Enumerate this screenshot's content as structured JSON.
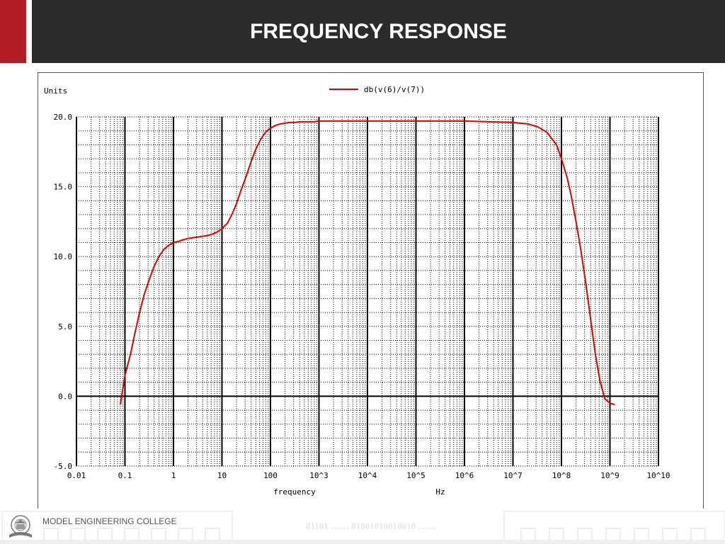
{
  "header": {
    "title": "FREQUENCY RESPONSE"
  },
  "footer": {
    "college": "MODEL ENGINEERING COLLEGE",
    "binary": "01101 …… 01001010010010 ……"
  },
  "colors": {
    "header_bg": "#2b2b2b",
    "accent": "#b21d24",
    "trace": "#e00000"
  },
  "chart_data": {
    "type": "line",
    "ylabel": "Units",
    "xlabel": "frequency",
    "xunit": "Hz",
    "x_scale": "log",
    "xlim": [
      0.01,
      10000000000
    ],
    "ylim": [
      -5,
      20
    ],
    "grid": true,
    "legend": "top-center",
    "yticks": [
      {
        "value": 20,
        "label": "20.0"
      },
      {
        "value": 15,
        "label": "15.0"
      },
      {
        "value": 10,
        "label": "10.0"
      },
      {
        "value": 5,
        "label": "5.0"
      },
      {
        "value": 0,
        "label": "0.0"
      },
      {
        "value": -5,
        "label": "-5.0"
      }
    ],
    "xticks": [
      {
        "value": 0.01,
        "label": "0.01"
      },
      {
        "value": 0.1,
        "label": "0.1"
      },
      {
        "value": 1,
        "label": "1"
      },
      {
        "value": 10,
        "label": "10"
      },
      {
        "value": 100,
        "label": "100"
      },
      {
        "value": 1000,
        "label": "10^3"
      },
      {
        "value": 10000,
        "label": "10^4"
      },
      {
        "value": 100000,
        "label": "10^5"
      },
      {
        "value": 1000000,
        "label": "10^6"
      },
      {
        "value": 10000000,
        "label": "10^7"
      },
      {
        "value": 100000000,
        "label": "10^8"
      },
      {
        "value": 1000000000,
        "label": "10^9"
      },
      {
        "value": 10000000000,
        "label": "10^10"
      }
    ],
    "series": [
      {
        "name": "db(v(6)/v(7))",
        "color": "#e00000",
        "x": [
          0.08,
          0.09,
          0.1,
          0.13,
          0.16,
          0.2,
          0.25,
          0.32,
          0.4,
          0.5,
          0.63,
          0.79,
          1,
          1.3,
          1.6,
          2,
          2.5,
          3.2,
          4,
          5,
          6.3,
          7.9,
          10,
          13,
          16,
          20,
          25,
          32,
          40,
          50,
          63,
          79,
          100,
          130,
          160,
          200,
          250,
          320,
          400,
          500,
          630,
          800,
          1000,
          10000,
          100000,
          1000000,
          3200000,
          10000000,
          20000000,
          32000000,
          50000000,
          79000000,
          100000000,
          130000000,
          160000000,
          200000000,
          250000000,
          320000000,
          400000000,
          500000000,
          630000000,
          790000000,
          1000000000,
          1260000000
        ],
        "y": [
          -0.6,
          0.5,
          1.5,
          3.0,
          4.5,
          6.0,
          7.3,
          8.4,
          9.3,
          10.0,
          10.5,
          10.8,
          11.0,
          11.1,
          11.2,
          11.3,
          11.35,
          11.4,
          11.45,
          11.5,
          11.6,
          11.75,
          12.0,
          12.4,
          13.0,
          13.8,
          14.8,
          15.8,
          16.8,
          17.7,
          18.4,
          18.9,
          19.2,
          19.4,
          19.5,
          19.55,
          19.6,
          19.6,
          19.65,
          19.65,
          19.65,
          19.65,
          19.7,
          19.7,
          19.7,
          19.7,
          19.65,
          19.6,
          19.5,
          19.3,
          18.9,
          18.0,
          17.0,
          15.7,
          14.3,
          12.5,
          10.5,
          8.0,
          5.5,
          3.0,
          1.0,
          -0.2,
          -0.5,
          -0.6
        ]
      }
    ]
  }
}
